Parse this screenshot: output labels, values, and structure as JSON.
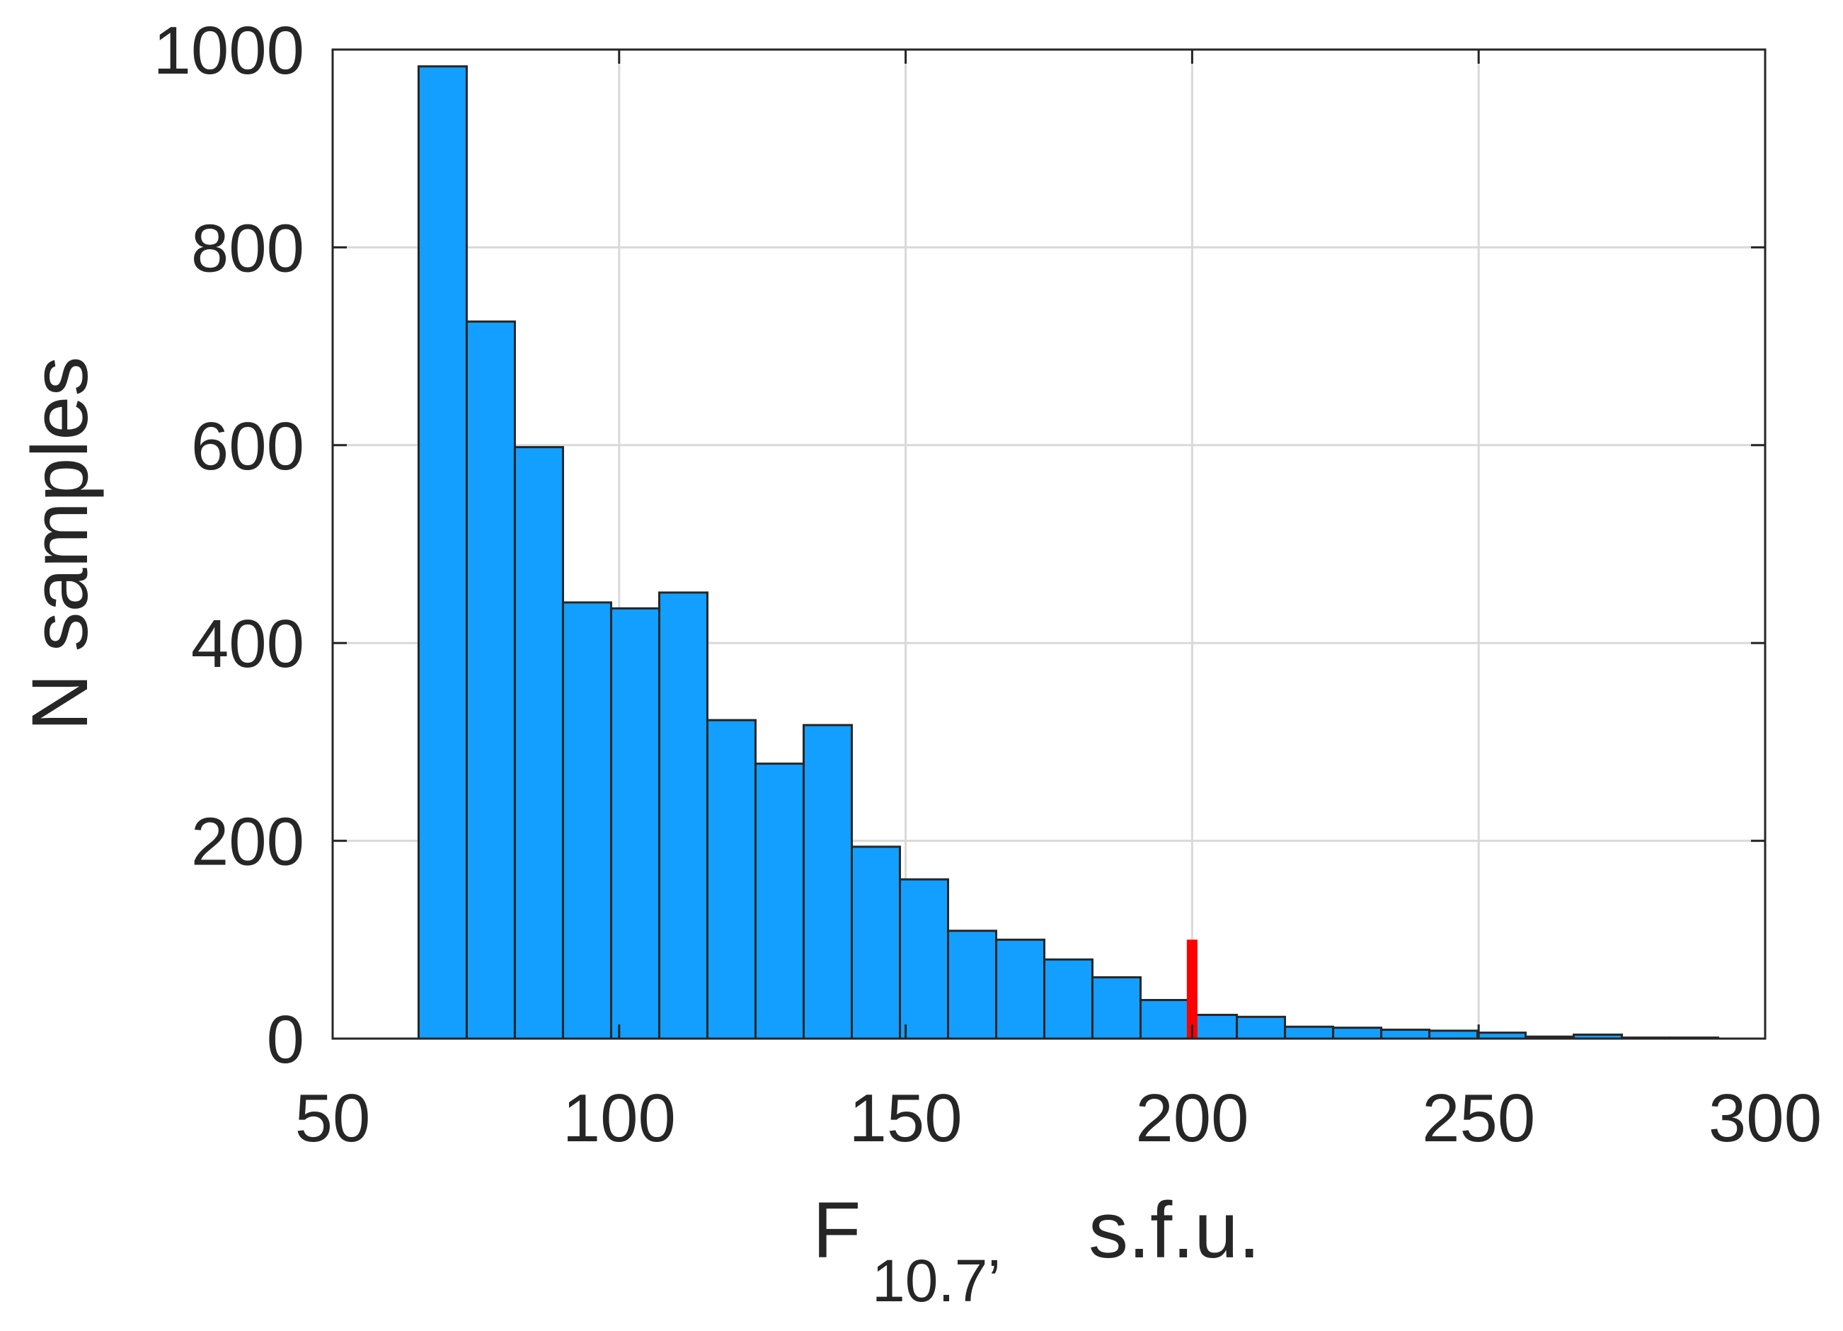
{
  "chart_data": {
    "type": "bar",
    "title": "",
    "xlabel": {
      "main": "F",
      "subscript": "10.7’",
      "unit": "s.f.u."
    },
    "ylabel": "N samples",
    "xlim": [
      50,
      300
    ],
    "ylim": [
      0,
      1000
    ],
    "xticks": [
      "50",
      "100",
      "150",
      "200",
      "250",
      "300"
    ],
    "yticks": [
      "0",
      "200",
      "400",
      "600",
      "800",
      "1000"
    ],
    "grid": true,
    "bin_edges": [
      65,
      73.4,
      81.8,
      90.2,
      98.6,
      107,
      115.4,
      123.8,
      132.2,
      140.6,
      149,
      157.4,
      165.8,
      174.2,
      182.6,
      191,
      199.4,
      207.8,
      216.2,
      224.6,
      233,
      241.4,
      249.8,
      258.2,
      266.6,
      275,
      283.4,
      291.8
    ],
    "values": [
      983,
      725,
      598,
      441,
      435,
      451,
      322,
      278,
      317,
      194,
      161,
      109,
      100,
      80,
      62,
      39,
      24,
      22,
      12,
      11,
      9,
      8,
      6,
      2,
      4,
      1,
      1
    ],
    "bar_color": "#139FFF",
    "bar_edge_color": "#262626",
    "marker": {
      "x": 200,
      "y_from": 0,
      "y_to": 100,
      "color": "#FF0000"
    }
  }
}
